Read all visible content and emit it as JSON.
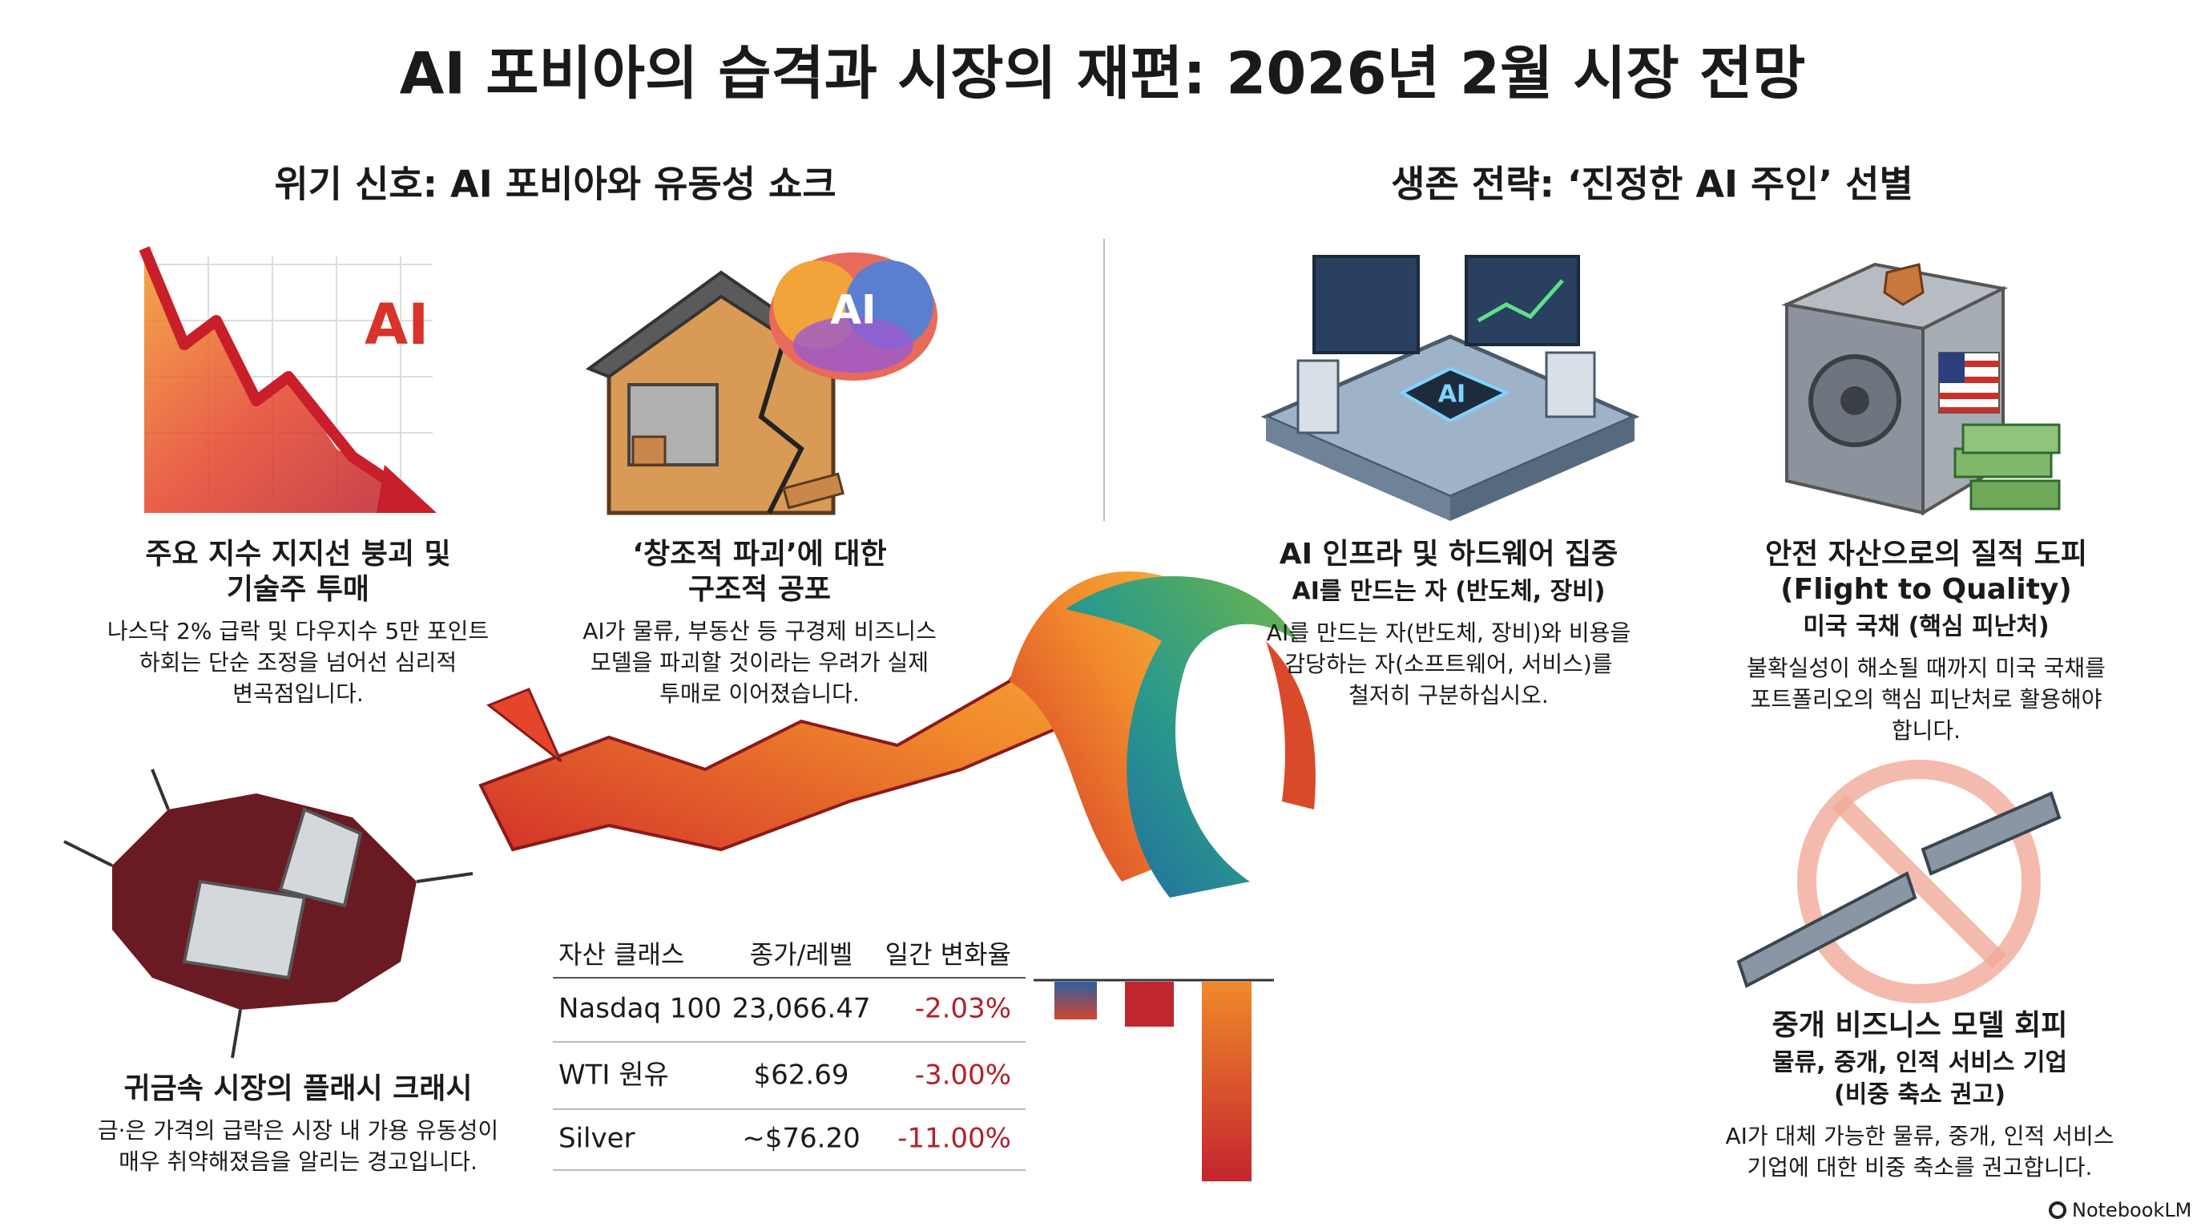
{
  "header": {
    "title": "AI 포비아의 습격과 시장의 재편: 2026년 2월 시장 전망"
  },
  "sections": [
    {
      "heading": "위기 신호: AI 포비아와 유동성 쇼크"
    },
    {
      "heading": "생존 전략: ‘진정한 AI 주인’ 선별"
    }
  ],
  "blocks": [
    {
      "title": [
        "주요 지수 지지선 붕괴 및",
        "기술주 투매"
      ],
      "body": [
        "나스닥 2% 급락 및 다우지수 5만 포인트",
        "하회는 단순 조정을 넘어선 심리적",
        "변곡점입니다."
      ]
    },
    {
      "title": [
        "‘창조적 파괴’에 대한",
        "구조적 공포"
      ],
      "body": [
        "AI가 물류, 부동산 등 구경제 비즈니스",
        "모델을 파괴할 것이라는 우려가 실제",
        "투매로 이어졌습니다."
      ]
    },
    {
      "title": [
        "AI 인프라 및 하드웨어 집중"
      ],
      "subtitle": [
        "AI를 만드는 자 (반도체, 장비)"
      ],
      "body": [
        "AI를 만드는 자(반도체, 장비)와 비용을",
        "감당하는 자(소프트웨어, 서비스)를",
        "철저히 구분하십시오."
      ]
    },
    {
      "title": [
        "안전 자산으로의 질적 도피",
        "(Flight to Quality)"
      ],
      "subtitle": [
        "미국 국채 (핵심 피난처)"
      ],
      "body": [
        "불확실성이 해소될 때까지 미국 국채를",
        "포트폴리오의 핵심 피난처로 활용해야",
        "합니다."
      ]
    },
    {
      "title": [
        "귀금속 시장의 플래시 크래시"
      ],
      "body": [
        "금·은 가격의 급락은 시장 내 가용 유동성이",
        "매우 취약해졌음을 알리는 경고입니다."
      ]
    },
    {
      "title": [
        "중개 비즈니스 모델 회피"
      ],
      "subtitle": [
        "물류, 중개, 인적 서비스 기업",
        "(비중 축소 권고)"
      ],
      "body": [
        "AI가 대체 가능한 물류, 중개, 인적 서비스",
        "기업에 대한 비중 축소를 권고합니다."
      ]
    }
  ],
  "table": {
    "header": [
      "자산 클래스",
      "종가/레벨",
      "일간 변화율"
    ],
    "rows": [
      [
        "Nasdaq 100",
        "23,066.47",
        "-2.03%"
      ],
      [
        "WTI 원유",
        "$62.69",
        "-3.00%"
      ],
      [
        "Silver",
        "~$76.20",
        "-11.00%"
      ]
    ]
  },
  "footer": {
    "brand": "NotebookLM"
  }
}
